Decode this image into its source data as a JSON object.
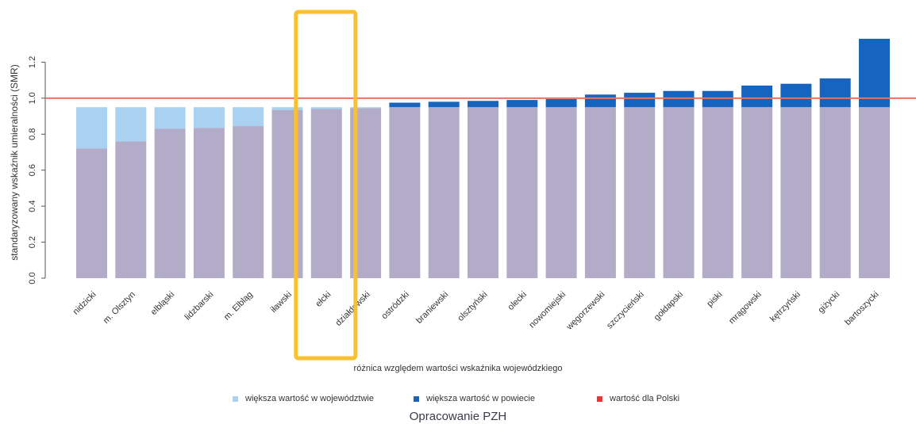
{
  "chart_data": {
    "type": "bar",
    "ylabel": "standaryzowany wskaźnik umieralności (SMR)",
    "ylim": [
      0,
      1.4
    ],
    "yticks": [
      "0.0",
      "0.2",
      "0.4",
      "0.6",
      "0.8",
      "1.0",
      "1.2"
    ],
    "reference": {
      "name": "wartość dla Polski",
      "value": 1.0
    },
    "voivodeship_value": 0.95,
    "categories": [
      "nidzicki",
      "m. Olsztyn",
      "elbląski",
      "lidzbarski",
      "m. Elbląg",
      "iławski",
      "ełcki",
      "działdowski",
      "ostródzki",
      "braniewski",
      "olsztyński",
      "olecki",
      "nowomiejski",
      "węgorzewski",
      "szczycieński",
      "gołdapski",
      "piski",
      "mrągowski",
      "kętrzyński",
      "giżycki",
      "bartoszycki"
    ],
    "values": [
      0.72,
      0.76,
      0.83,
      0.835,
      0.845,
      0.935,
      0.94,
      0.945,
      0.975,
      0.98,
      0.985,
      0.99,
      0.995,
      1.02,
      1.03,
      1.04,
      1.04,
      1.07,
      1.08,
      1.11,
      1.33
    ],
    "highlighted_category": "ełcki",
    "caption": "różnica względem wartości wskaźnika wojewódzkiego",
    "legend": [
      {
        "label": "większa wartość w województwie",
        "color": "#a9d2f2"
      },
      {
        "label": "większa wartość w powiecie",
        "color": "#1565c0"
      },
      {
        "label": "wartość dla Polski",
        "color": "#e53935"
      }
    ],
    "colors": {
      "base": "#b3acc9",
      "higher_in_region": "#a9d2f2",
      "higher_in_county": "#1565c0",
      "reference": "#e57368",
      "highlight": "#fbc02d"
    }
  },
  "source": "Opracowanie PZH"
}
